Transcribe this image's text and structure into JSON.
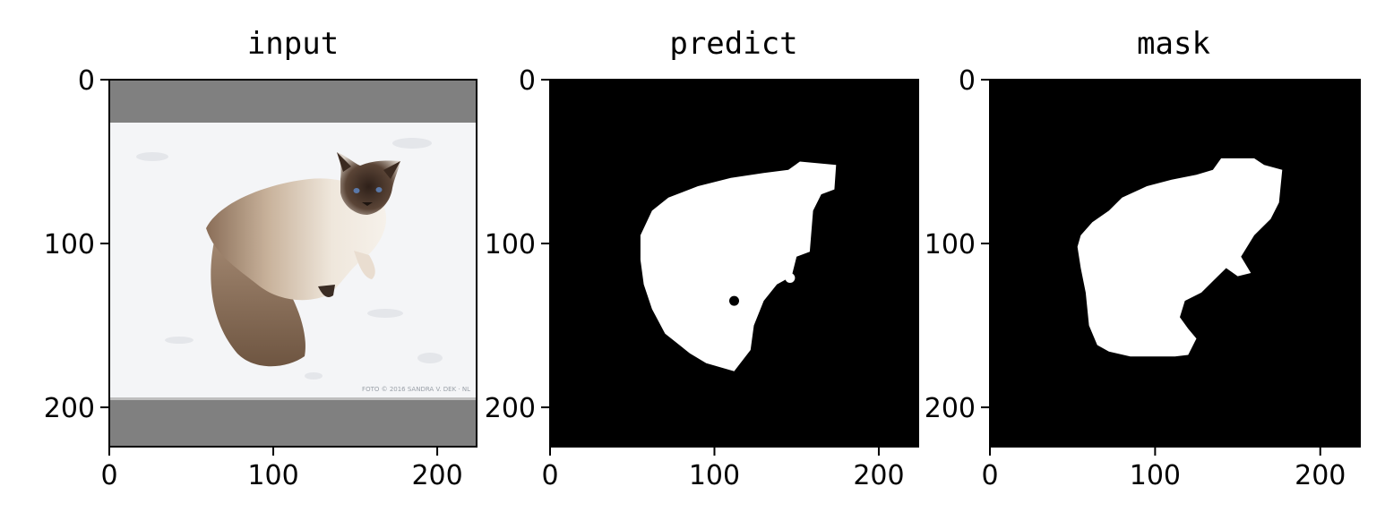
{
  "panels": [
    {
      "title": "input",
      "x_ticks": [
        "0",
        "100",
        "200"
      ],
      "y_ticks": [
        "0",
        "100",
        "200"
      ],
      "x_tick_values": [
        0,
        100,
        200
      ],
      "y_tick_values": [
        0,
        100,
        200
      ],
      "x_range": [
        0,
        224
      ],
      "y_range": [
        0,
        224
      ],
      "content": "cat-on-snow-photo",
      "watermark": "FOTO © 2016 SANDRA V. DEK · NL"
    },
    {
      "title": "predict",
      "x_ticks": [
        "0",
        "100",
        "200"
      ],
      "y_ticks": [
        "0",
        "100",
        "200"
      ],
      "x_tick_values": [
        0,
        100,
        200
      ],
      "y_tick_values": [
        0,
        100,
        200
      ],
      "x_range": [
        0,
        224
      ],
      "y_range": [
        0,
        224
      ],
      "content": "binary-mask",
      "blob": [
        [
          152,
          50
        ],
        [
          174,
          52
        ],
        [
          173,
          67
        ],
        [
          165,
          70
        ],
        [
          160,
          80
        ],
        [
          158,
          105
        ],
        [
          150,
          108
        ],
        [
          147,
          120
        ],
        [
          138,
          125
        ],
        [
          130,
          135
        ],
        [
          124,
          150
        ],
        [
          122,
          165
        ],
        [
          112,
          178
        ],
        [
          95,
          173
        ],
        [
          85,
          167
        ],
        [
          70,
          155
        ],
        [
          62,
          140
        ],
        [
          57,
          125
        ],
        [
          55,
          110
        ],
        [
          55,
          95
        ],
        [
          62,
          80
        ],
        [
          72,
          72
        ],
        [
          90,
          65
        ],
        [
          110,
          60
        ],
        [
          130,
          57
        ],
        [
          145,
          55
        ]
      ],
      "specks": [
        [
          112,
          135,
          3
        ],
        [
          146,
          121,
          3
        ]
      ]
    },
    {
      "title": "mask",
      "x_ticks": [
        "0",
        "100",
        "200"
      ],
      "y_ticks": [
        "0",
        "100",
        "200"
      ],
      "x_tick_values": [
        0,
        100,
        200
      ],
      "y_tick_values": [
        0,
        100,
        200
      ],
      "x_range": [
        0,
        224
      ],
      "y_range": [
        0,
        224
      ],
      "content": "binary-mask",
      "blob": [
        [
          140,
          48
        ],
        [
          160,
          48
        ],
        [
          166,
          52
        ],
        [
          177,
          55
        ],
        [
          175,
          75
        ],
        [
          170,
          85
        ],
        [
          160,
          95
        ],
        [
          152,
          108
        ],
        [
          158,
          118
        ],
        [
          150,
          120
        ],
        [
          143,
          115
        ],
        [
          138,
          120
        ],
        [
          128,
          130
        ],
        [
          118,
          135
        ],
        [
          115,
          145
        ],
        [
          120,
          152
        ],
        [
          125,
          158
        ],
        [
          120,
          168
        ],
        [
          112,
          169
        ],
        [
          85,
          169
        ],
        [
          72,
          166
        ],
        [
          65,
          162
        ],
        [
          60,
          150
        ],
        [
          58,
          130
        ],
        [
          55,
          115
        ],
        [
          53,
          102
        ],
        [
          55,
          95
        ],
        [
          62,
          87
        ],
        [
          72,
          80
        ],
        [
          80,
          72
        ],
        [
          95,
          65
        ],
        [
          110,
          61
        ],
        [
          125,
          58
        ],
        [
          135,
          55
        ]
      ],
      "specks": []
    }
  ]
}
